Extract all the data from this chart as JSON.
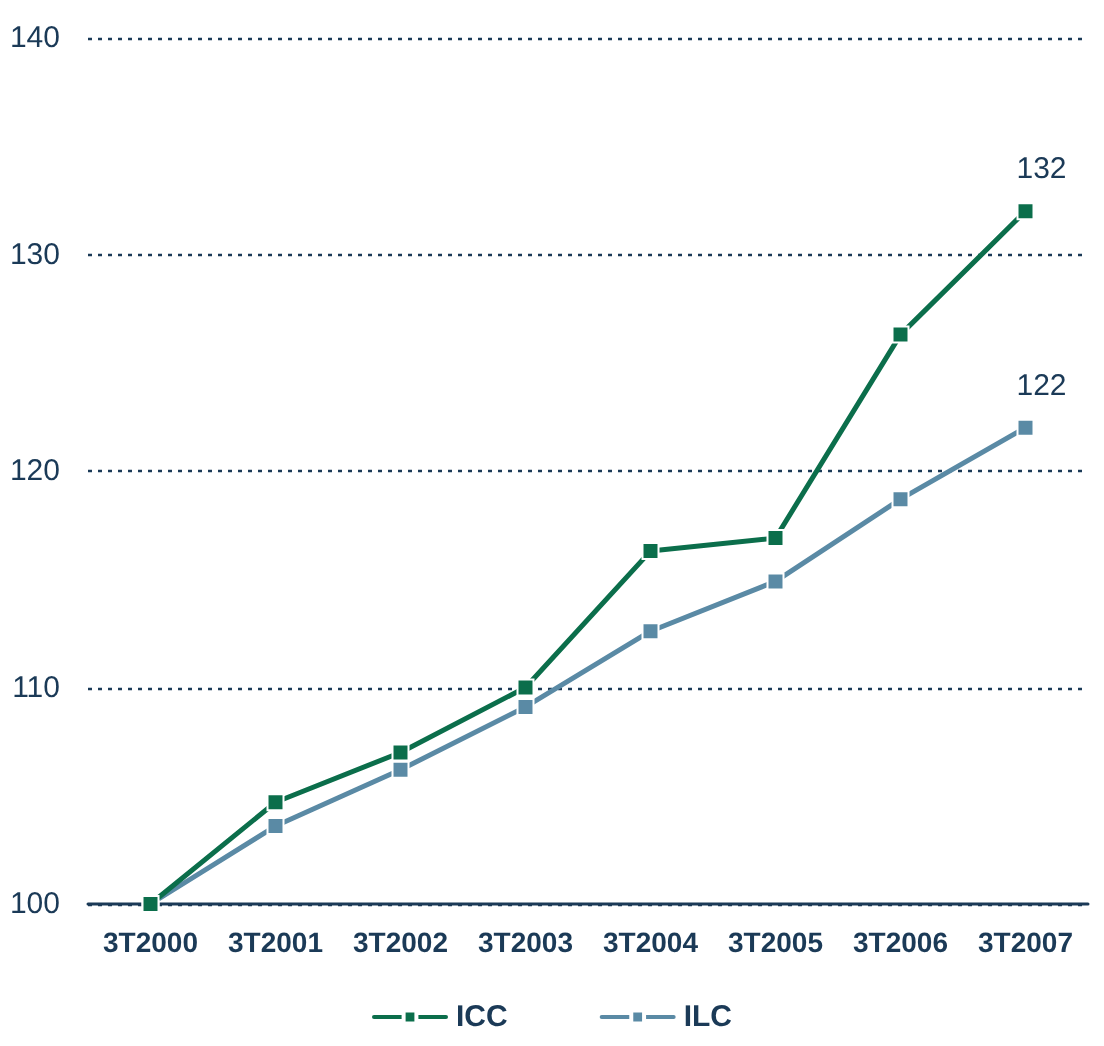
{
  "chart_data": {
    "type": "line",
    "categories": [
      "3T2000",
      "3T2001",
      "3T2002",
      "3T2003",
      "3T2004",
      "3T2005",
      "3T2006",
      "3T2007"
    ],
    "series": [
      {
        "name": "ICC",
        "color": "#0b6e4b",
        "values": [
          100,
          104.7,
          107.0,
          110.0,
          116.3,
          116.9,
          126.3,
          132
        ],
        "value_labels": [
          null,
          null,
          null,
          null,
          null,
          null,
          null,
          "132"
        ]
      },
      {
        "name": "ILC",
        "color": "#5a8aa5",
        "values": [
          100,
          103.6,
          106.2,
          109.1,
          112.6,
          114.9,
          118.7,
          122
        ],
        "value_labels": [
          null,
          null,
          null,
          null,
          null,
          null,
          null,
          "122"
        ]
      }
    ],
    "ylim": [
      100,
      140
    ],
    "yticks": [
      100,
      110,
      120,
      130,
      140
    ],
    "grid": "y",
    "legend": "bottom",
    "marker": "square",
    "line_style": "solid"
  }
}
